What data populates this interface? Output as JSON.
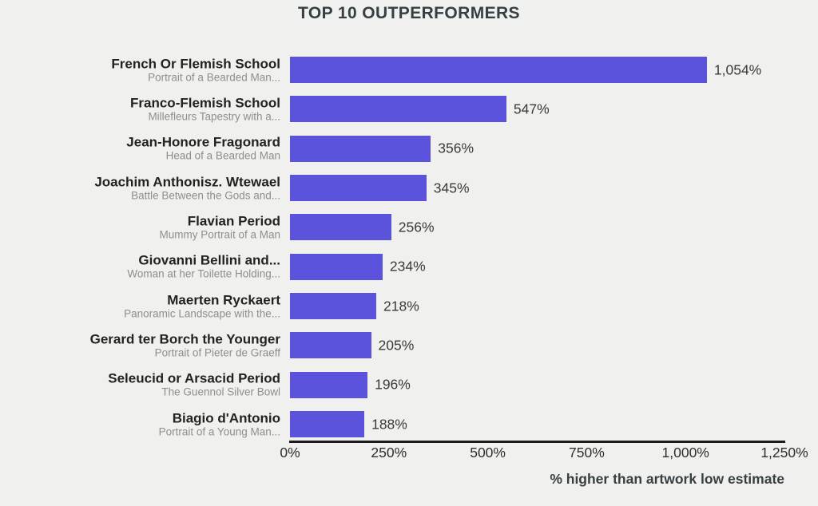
{
  "colors": {
    "background": "#f0f0ee",
    "bar": "#5c53dd",
    "title": "#363f42",
    "category_name": "#222222",
    "category_subtitle": "#8e8e8e",
    "value_label": "#3a3a3a",
    "tick_label": "#2e2e2e",
    "axis_line": "#1b1b1b"
  },
  "chart_data": {
    "type": "bar",
    "orientation": "horizontal",
    "title": "TOP 10 OUTPERFORMERS",
    "xlabel": "% higher than artwork low estimate",
    "xlim": [
      0,
      1250
    ],
    "grid": false,
    "legend": "none",
    "xticks": [
      "0%",
      "250%",
      "500%",
      "750%",
      "1,000%",
      "1,250%"
    ],
    "xtick_values": [
      0,
      250,
      500,
      750,
      1000,
      1250
    ],
    "bars": [
      {
        "name": "French Or Flemish School",
        "subtitle": "Portrait of a Bearded Man...",
        "value": 1054,
        "value_label": "1,054%"
      },
      {
        "name": "Franco-Flemish School",
        "subtitle": "Millefleurs Tapestry with a...",
        "value": 547,
        "value_label": "547%"
      },
      {
        "name": "Jean-Honore Fragonard",
        "subtitle": "Head of a Bearded Man",
        "value": 356,
        "value_label": "356%"
      },
      {
        "name": "Joachim Anthonisz. Wtewael",
        "subtitle": "Battle Between the Gods and...",
        "value": 345,
        "value_label": "345%"
      },
      {
        "name": "Flavian Period",
        "subtitle": "Mummy Portrait of a Man",
        "value": 256,
        "value_label": "256%"
      },
      {
        "name": "Giovanni Bellini and...",
        "subtitle": "Woman at her Toilette Holding...",
        "value": 234,
        "value_label": "234%"
      },
      {
        "name": "Maerten Ryckaert",
        "subtitle": "Panoramic Landscape with the...",
        "value": 218,
        "value_label": "218%"
      },
      {
        "name": "Gerard ter Borch the Younger",
        "subtitle": "Portrait of Pieter de Graeff",
        "value": 205,
        "value_label": "205%"
      },
      {
        "name": "Seleucid or Arsacid Period",
        "subtitle": "The Guennol Silver Bowl",
        "value": 196,
        "value_label": "196%"
      },
      {
        "name": "Biagio d'Antonio",
        "subtitle": "Portrait of a Young Man...",
        "value": 188,
        "value_label": "188%"
      }
    ]
  }
}
